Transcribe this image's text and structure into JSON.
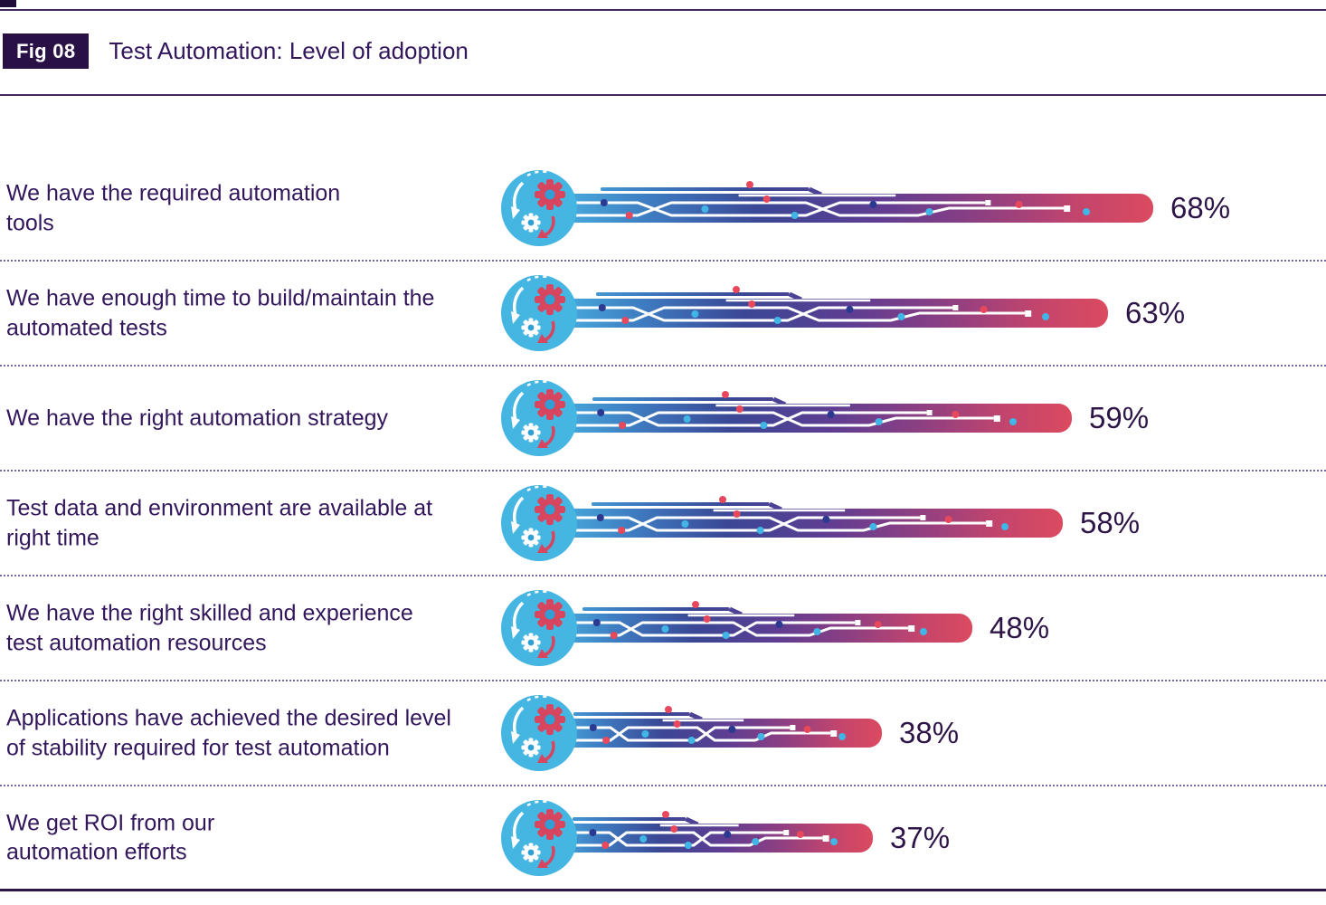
{
  "header": {
    "fig_label": "Fig 08",
    "title": "Test Automation: Level of adoption"
  },
  "chart_data": {
    "type": "bar",
    "orientation": "horizontal",
    "unit": "%",
    "title": "Test Automation: Level of adoption",
    "xlim": [
      0,
      100
    ],
    "grid": false,
    "legend": "none",
    "categories": [
      "We have the required automation tools",
      "We have enough time to build/maintain the automated tests",
      "We have the right automation strategy",
      "Test data and environment are available at right time",
      "We have the right skilled and experience test automation resources",
      "Applications have achieved the desired level of stability required for test automation",
      "We get ROI from our automation efforts"
    ],
    "values": [
      68,
      63,
      59,
      58,
      48,
      38,
      37
    ],
    "rows": [
      {
        "label": "We have the required automation\ntools",
        "value": 68,
        "value_label": "68%"
      },
      {
        "label": "We have enough time to build/maintain the\nautomated tests",
        "value": 63,
        "value_label": "63%"
      },
      {
        "label": "We have the right automation strategy",
        "value": 59,
        "value_label": "59%"
      },
      {
        "label": "Test data and environment are available at\nright time",
        "value": 58,
        "value_label": "58%"
      },
      {
        "label": "We have the right skilled and experience\ntest automation resources",
        "value": 48,
        "value_label": "48%"
      },
      {
        "label": "Applications have achieved the desired level\nof stability required for test automation",
        "value": 38,
        "value_label": "38%"
      },
      {
        "label": "We get ROI from our\nautomation efforts",
        "value": 37,
        "value_label": "37%"
      }
    ],
    "palette": {
      "circle_blue": "#45B5E2",
      "gear_red": "#D8455F",
      "gear_hole_blue": "#2F9FD4",
      "bar_gradient": [
        "#4AB8E5",
        "#3E7CC1",
        "#3A4795",
        "#5E3D92",
        "#8E3F82",
        "#C4456C",
        "#DB4A60"
      ],
      "dot_navy": "#2B3990",
      "dot_red": "#E8485C",
      "dot_blue": "#41B6E6",
      "label_text": "#33175C",
      "value_text": "#2E1547",
      "separator_dotted": "#776AA6",
      "rule_purple": "#43285F",
      "badge_bg": "#2A1145",
      "bottom_rule": "#2E1547"
    }
  }
}
